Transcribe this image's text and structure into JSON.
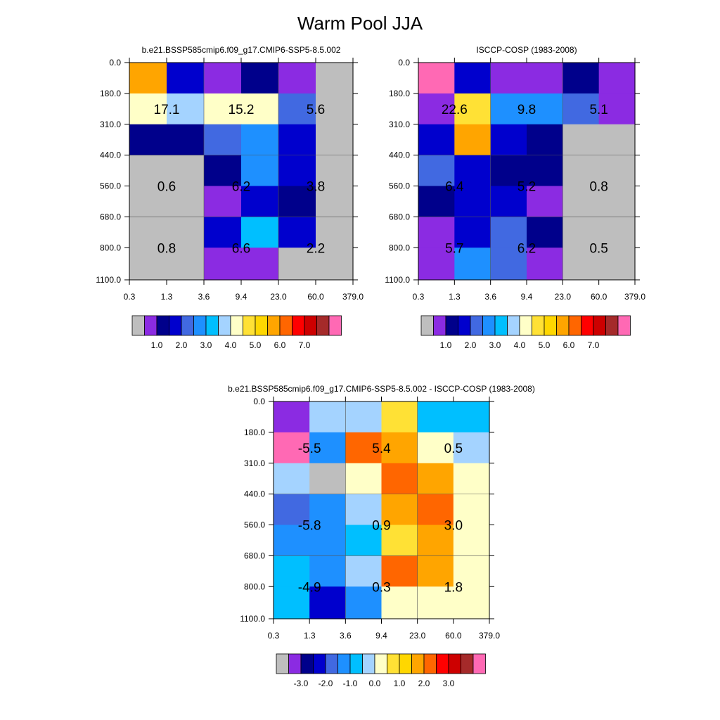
{
  "title": "Warm Pool JJA",
  "chart_data": [
    {
      "type": "heatmap",
      "title": "b.e21.BSSP585cmip6.f09_g17.CMIP6-SSP5-8.5.002",
      "x_ticks": [
        "0.3",
        "1.3",
        "3.6",
        "9.4",
        "23.0",
        "60.0",
        "379.0"
      ],
      "y_ticks": [
        "0.0",
        "180.0",
        "310.0",
        "440.0",
        "560.0",
        "680.0",
        "800.0",
        "1100.0"
      ],
      "colorbar": {
        "colors": [
          "#bebebe",
          "#8b2be2",
          "#00008b",
          "#0000cd",
          "#4169e1",
          "#1e90ff",
          "#00bfff",
          "#a4d3ff",
          "#ffffc8",
          "#ffe135",
          "#ffd700",
          "#ffa500",
          "#ff6600",
          "#ff0000",
          "#cd0000",
          "#a52a2a",
          "#ff69b4"
        ],
        "labels": [
          "1.0",
          "2.0",
          "3.0",
          "4.0",
          "5.0",
          "6.0",
          "7.0"
        ]
      },
      "cells": [
        [
          11,
          3,
          1,
          2,
          1,
          0
        ],
        [
          8,
          7,
          8,
          8,
          4,
          0
        ],
        [
          2,
          2,
          4,
          5,
          3,
          0
        ],
        [
          0,
          0,
          2,
          5,
          3,
          0
        ],
        [
          0,
          0,
          1,
          3,
          2,
          0
        ],
        [
          0,
          0,
          3,
          6,
          3,
          0
        ],
        [
          0,
          0,
          1,
          1,
          0,
          0
        ]
      ],
      "totals": [
        {
          "label": "17.1",
          "col": 1,
          "row": 1.5
        },
        {
          "label": "15.2",
          "col": 3,
          "row": 1.5
        },
        {
          "label": "5.6",
          "col": 5,
          "row": 1.5
        },
        {
          "label": "0.6",
          "col": 1,
          "row": 4
        },
        {
          "label": "6.2",
          "col": 3,
          "row": 4
        },
        {
          "label": "3.8",
          "col": 5,
          "row": 4
        },
        {
          "label": "0.8",
          "col": 1,
          "row": 6
        },
        {
          "label": "6.6",
          "col": 3,
          "row": 6
        },
        {
          "label": "2.2",
          "col": 5,
          "row": 6
        }
      ]
    },
    {
      "type": "heatmap",
      "title": "ISCCP-COSP (1983-2008)",
      "x_ticks": [
        "0.3",
        "1.3",
        "3.6",
        "9.4",
        "23.0",
        "60.0",
        "379.0"
      ],
      "y_ticks": [
        "0.0",
        "180.0",
        "310.0",
        "440.0",
        "560.0",
        "680.0",
        "800.0",
        "1100.0"
      ],
      "colorbar": {
        "colors": [
          "#bebebe",
          "#8b2be2",
          "#00008b",
          "#0000cd",
          "#4169e1",
          "#1e90ff",
          "#00bfff",
          "#a4d3ff",
          "#ffffc8",
          "#ffe135",
          "#ffd700",
          "#ffa500",
          "#ff6600",
          "#ff0000",
          "#cd0000",
          "#a52a2a",
          "#ff69b4"
        ],
        "labels": [
          "1.0",
          "2.0",
          "3.0",
          "4.0",
          "5.0",
          "6.0",
          "7.0"
        ]
      },
      "cells": [
        [
          16,
          3,
          1,
          1,
          2,
          1
        ],
        [
          1,
          9,
          5,
          5,
          4,
          1
        ],
        [
          3,
          11,
          3,
          2,
          0,
          0
        ],
        [
          4,
          3,
          2,
          2,
          0,
          0
        ],
        [
          2,
          3,
          3,
          1,
          0,
          0
        ],
        [
          1,
          3,
          4,
          2,
          0,
          0
        ],
        [
          1,
          5,
          4,
          1,
          0,
          0
        ]
      ],
      "totals": [
        {
          "label": "22.6",
          "col": 1,
          "row": 1.5
        },
        {
          "label": "9.8",
          "col": 3,
          "row": 1.5
        },
        {
          "label": "5.1",
          "col": 5,
          "row": 1.5
        },
        {
          "label": "6.4",
          "col": 1,
          "row": 4
        },
        {
          "label": "5.2",
          "col": 3,
          "row": 4
        },
        {
          "label": "0.8",
          "col": 5,
          "row": 4
        },
        {
          "label": "5.7",
          "col": 1,
          "row": 6
        },
        {
          "label": "6.2",
          "col": 3,
          "row": 6
        },
        {
          "label": "0.5",
          "col": 5,
          "row": 6
        }
      ]
    },
    {
      "type": "heatmap",
      "title": "b.e21.BSSP585cmip6.f09_g17.CMIP6-SSP5-8.5.002 - ISCCP-COSP (1983-2008)",
      "x_ticks": [
        "0.3",
        "1.3",
        "3.6",
        "9.4",
        "23.0",
        "60.0",
        "379.0"
      ],
      "y_ticks": [
        "0.0",
        "180.0",
        "310.0",
        "440.0",
        "560.0",
        "680.0",
        "800.0",
        "1100.0"
      ],
      "colorbar": {
        "colors": [
          "#bebebe",
          "#8b2be2",
          "#00008b",
          "#0000cd",
          "#4169e1",
          "#1e90ff",
          "#00bfff",
          "#a4d3ff",
          "#ffffc8",
          "#ffe135",
          "#ffd700",
          "#ffa500",
          "#ff6600",
          "#ff0000",
          "#cd0000",
          "#a52a2a",
          "#ff69b4"
        ],
        "labels": [
          "-3.0",
          "-2.0",
          "-1.0",
          "0.0",
          "1.0",
          "2.0",
          "3.0"
        ]
      },
      "cells": [
        [
          1,
          7,
          7,
          9,
          6,
          6
        ],
        [
          16,
          5,
          12,
          11,
          8,
          7
        ],
        [
          7,
          0,
          8,
          12,
          11,
          8
        ],
        [
          4,
          5,
          7,
          11,
          12,
          8
        ],
        [
          5,
          5,
          6,
          9,
          11,
          8
        ],
        [
          6,
          5,
          7,
          12,
          11,
          8
        ],
        [
          6,
          3,
          5,
          8,
          8,
          8
        ]
      ],
      "totals": [
        {
          "label": "-5.5",
          "col": 1,
          "row": 1.5
        },
        {
          "label": "5.4",
          "col": 3,
          "row": 1.5
        },
        {
          "label": "0.5",
          "col": 5,
          "row": 1.5
        },
        {
          "label": "-5.8",
          "col": 1,
          "row": 4
        },
        {
          "label": "0.9",
          "col": 3,
          "row": 4
        },
        {
          "label": "3.0",
          "col": 5,
          "row": 4
        },
        {
          "label": "-4.9",
          "col": 1,
          "row": 6
        },
        {
          "label": "0.3",
          "col": 3,
          "row": 6
        },
        {
          "label": "1.8",
          "col": 5,
          "row": 6
        }
      ]
    }
  ]
}
